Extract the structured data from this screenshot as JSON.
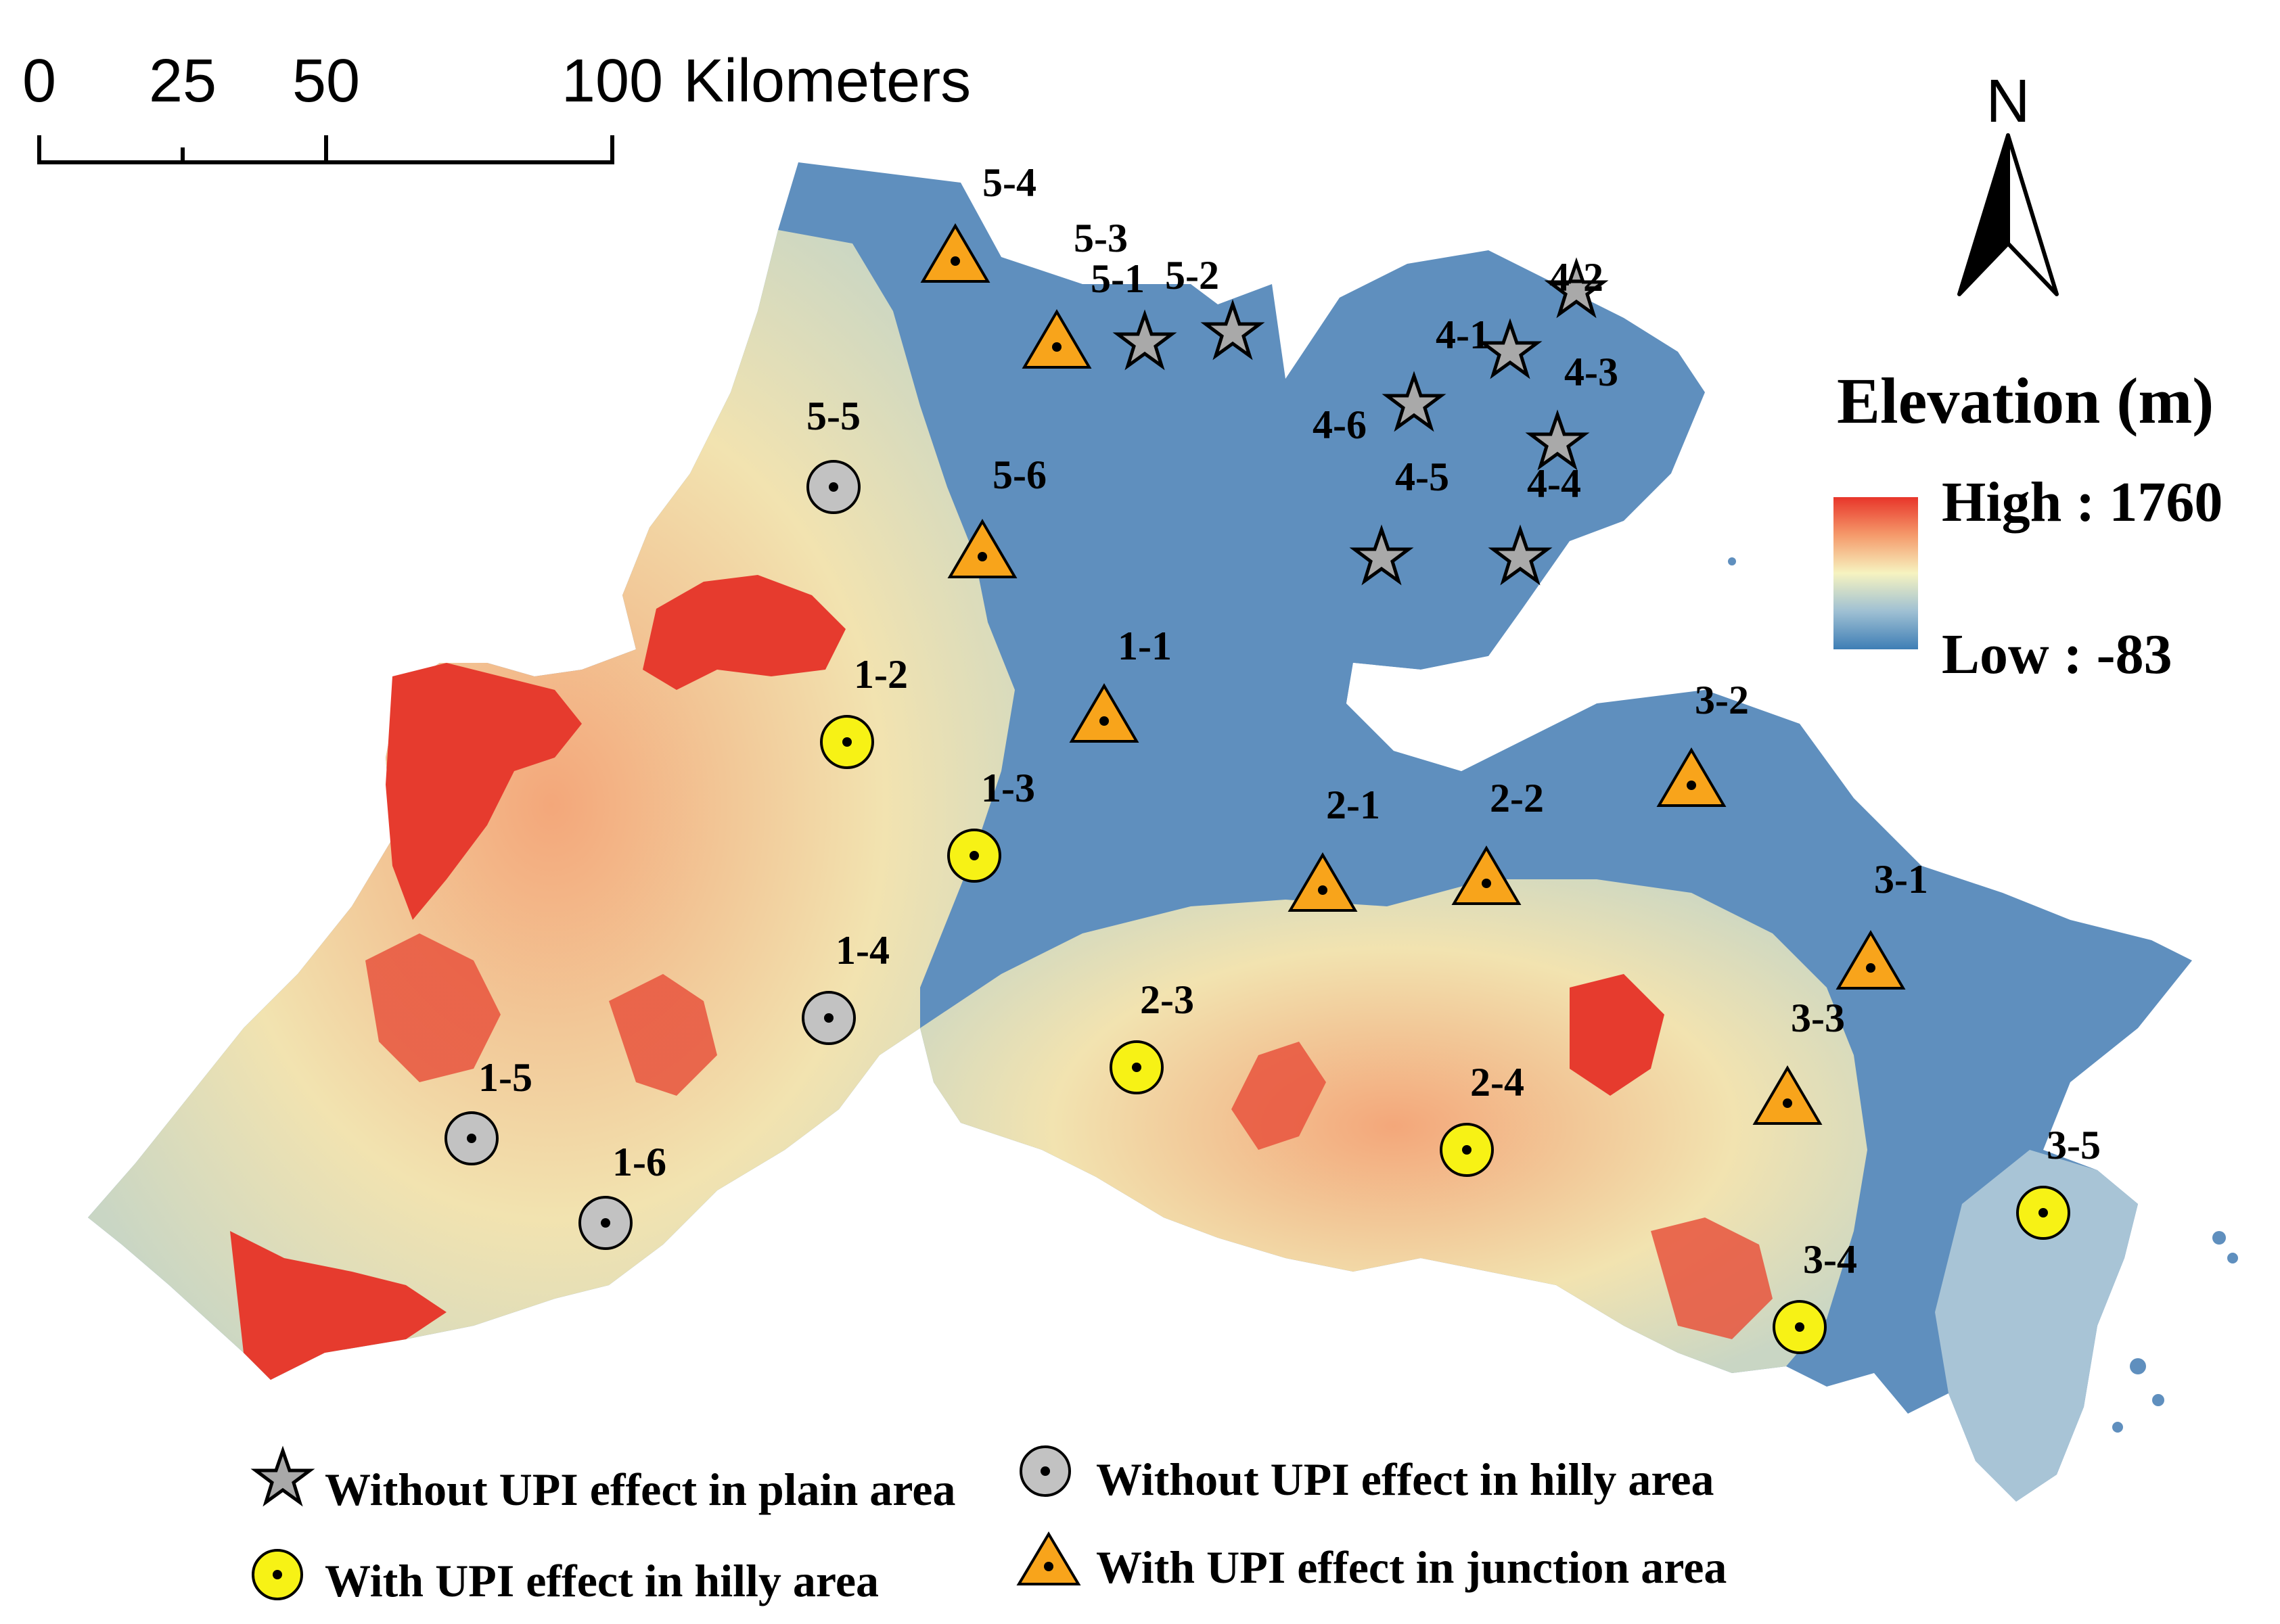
{
  "scalebar": {
    "ticks": [
      "0",
      "25",
      "50",
      "100"
    ],
    "unit": "Kilometers"
  },
  "north_arrow": {
    "label": "N"
  },
  "elevation_legend": {
    "title": "Elevation (m)",
    "high_label": "High : 1760",
    "low_label": "Low : -83",
    "colors": [
      "#e8352a",
      "#f59a6b",
      "#f6f3c0",
      "#9fc0d3",
      "#3e7eb5"
    ]
  },
  "colors": {
    "plain": "#5f8fbe",
    "plain_light": "#7ca5cc",
    "hill_low": "#f2e8b6",
    "hill_mid": "#f3a77a",
    "hill_high": "#e63b2e",
    "triangle": "#f8a41b",
    "circle_yellow": "#f7f215",
    "circle_gray": "#c2c2c2",
    "star": "#a9a9a9"
  },
  "sites": {
    "plain_no_upi": [
      "5-1",
      "5-2",
      "4-1",
      "4-2",
      "4-3",
      "4-4",
      "4-5",
      "4-6"
    ],
    "hilly_no_upi": [
      "5-5",
      "1-4",
      "1-5",
      "1-6"
    ],
    "hilly_upi": [
      "1-2",
      "1-3",
      "2-3",
      "2-4",
      "3-4",
      "3-5"
    ],
    "junction_upi": [
      "5-4",
      "5-3",
      "5-6",
      "1-1",
      "2-1",
      "2-2",
      "3-1",
      "3-2",
      "3-3"
    ]
  },
  "legend": {
    "plain_no_upi": "Without UPI effect in plain area",
    "hilly_no_upi": "Without UPI effect in hilly area",
    "hilly_upi": "With UPI effect in hilly area",
    "junction_upi": "With UPI effect in junction area"
  }
}
